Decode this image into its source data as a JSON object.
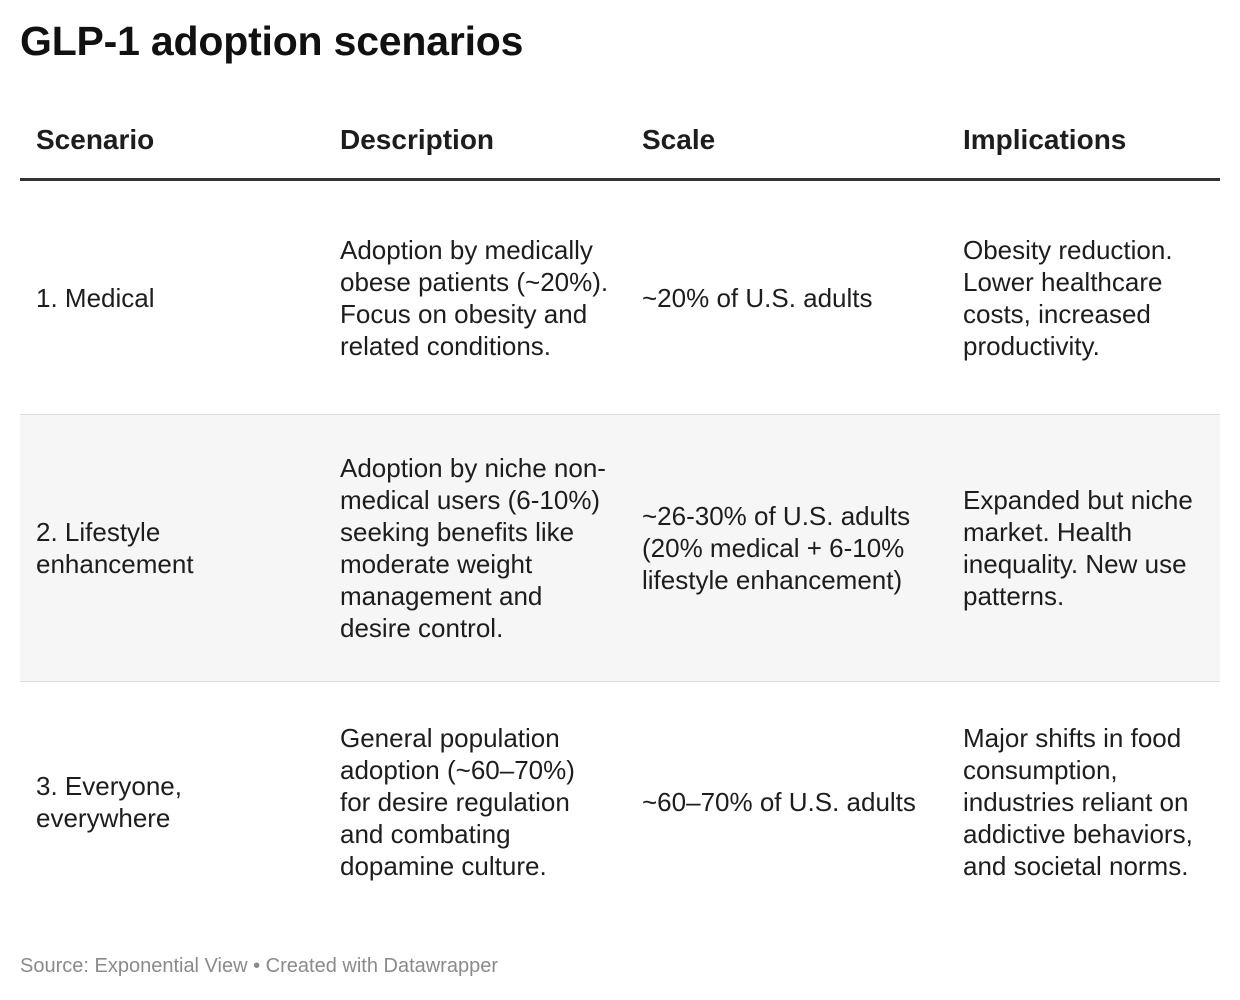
{
  "title": "GLP-1 adoption scenarios",
  "table": {
    "headers": [
      "Scenario",
      "Description",
      "Scale",
      "Implications"
    ],
    "rows": [
      {
        "scenario": "1. Medical",
        "description": "Adoption by medically obese patients (~20%). Focus on obesity and related conditions.",
        "scale": "~20% of U.S. adults",
        "implications": "Obesity reduction. Lower healthcare costs, increased productivity."
      },
      {
        "scenario": "2. Lifestyle enhancement",
        "description": "Adoption by niche non-medical users (6-10%) seeking benefits like moderate weight management and desire control.",
        "scale": "~26-30% of U.S. adults (20% medical + 6-10% lifestyle enhancement)",
        "implications": "Expanded but niche market. Health inequality. New use patterns."
      },
      {
        "scenario": "3. Everyone, everywhere",
        "description": "General population adoption (~60–70%) for desire regulation and combating dopamine culture.",
        "scale": "~60–70% of U.S. adults",
        "implications": "Major shifts in food consumption, industries reliant on addictive behaviors, and societal norms."
      }
    ]
  },
  "footer": {
    "source": "Source: Exponential View • Created with Datawrapper"
  }
}
